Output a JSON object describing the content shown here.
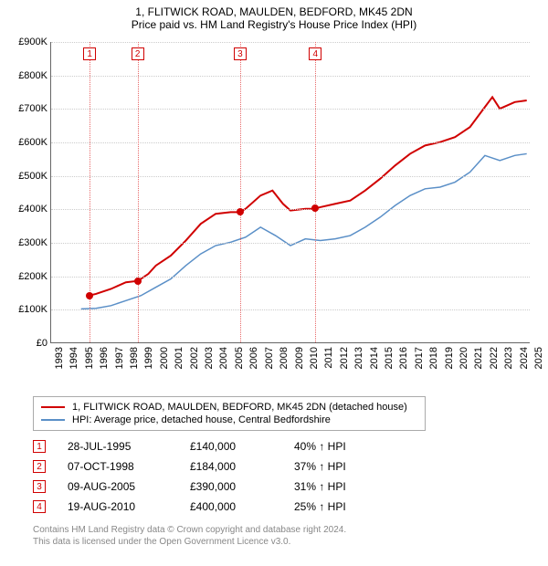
{
  "title_line1": "1, FLITWICK ROAD, MAULDEN, BEDFORD, MK45 2DN",
  "title_line2": "Price paid vs. HM Land Registry's House Price Index (HPI)",
  "chart": {
    "type": "line",
    "background_color": "#ffffff",
    "grid_color": "#cccccc",
    "axis_color": "#666666",
    "ylim": [
      0,
      900000
    ],
    "ytick_step": 100000,
    "ytick_labels": [
      "£0",
      "£100K",
      "£200K",
      "£300K",
      "£400K",
      "£500K",
      "£600K",
      "£700K",
      "£800K",
      "£900K"
    ],
    "xlim": [
      1993,
      2025
    ],
    "xtick_step": 1,
    "xtick_labels": [
      "1993",
      "1994",
      "1995",
      "1996",
      "1997",
      "1998",
      "1999",
      "2000",
      "2001",
      "2002",
      "2003",
      "2004",
      "2005",
      "2006",
      "2007",
      "2008",
      "2009",
      "2010",
      "2011",
      "2012",
      "2013",
      "2014",
      "2015",
      "2016",
      "2017",
      "2018",
      "2019",
      "2020",
      "2021",
      "2022",
      "2023",
      "2024",
      "2025"
    ],
    "label_fontsize": 11,
    "title_fontsize": 12,
    "series": {
      "price": {
        "label": "1, FLITWICK ROAD, MAULDEN, BEDFORD, MK45 2DN (detached house)",
        "color": "#d00000",
        "line_width": 2,
        "points": [
          [
            1995.5,
            140000
          ],
          [
            1996,
            145000
          ],
          [
            1997,
            160000
          ],
          [
            1998,
            180000
          ],
          [
            1998.8,
            184000
          ],
          [
            1999.5,
            205000
          ],
          [
            2000,
            230000
          ],
          [
            2001,
            260000
          ],
          [
            2002,
            305000
          ],
          [
            2003,
            355000
          ],
          [
            2004,
            385000
          ],
          [
            2005,
            390000
          ],
          [
            2005.6,
            390000
          ],
          [
            2006,
            400000
          ],
          [
            2007,
            440000
          ],
          [
            2007.8,
            455000
          ],
          [
            2008.5,
            415000
          ],
          [
            2009,
            395000
          ],
          [
            2010,
            400000
          ],
          [
            2010.6,
            400000
          ],
          [
            2011,
            405000
          ],
          [
            2012,
            415000
          ],
          [
            2013,
            425000
          ],
          [
            2014,
            455000
          ],
          [
            2015,
            490000
          ],
          [
            2016,
            530000
          ],
          [
            2017,
            565000
          ],
          [
            2018,
            590000
          ],
          [
            2019,
            600000
          ],
          [
            2020,
            615000
          ],
          [
            2021,
            645000
          ],
          [
            2022,
            705000
          ],
          [
            2022.5,
            735000
          ],
          [
            2023,
            700000
          ],
          [
            2024,
            720000
          ],
          [
            2024.8,
            725000
          ]
        ]
      },
      "hpi": {
        "label": "HPI: Average price, detached house, Central Bedfordshire",
        "color": "#5a8fc7",
        "line_width": 1.5,
        "points": [
          [
            1995,
            100000
          ],
          [
            1996,
            102000
          ],
          [
            1997,
            110000
          ],
          [
            1998,
            125000
          ],
          [
            1999,
            140000
          ],
          [
            2000,
            165000
          ],
          [
            2001,
            190000
          ],
          [
            2002,
            230000
          ],
          [
            2003,
            265000
          ],
          [
            2004,
            290000
          ],
          [
            2005,
            300000
          ],
          [
            2006,
            315000
          ],
          [
            2007,
            345000
          ],
          [
            2008,
            320000
          ],
          [
            2009,
            290000
          ],
          [
            2010,
            310000
          ],
          [
            2011,
            305000
          ],
          [
            2012,
            310000
          ],
          [
            2013,
            320000
          ],
          [
            2014,
            345000
          ],
          [
            2015,
            375000
          ],
          [
            2016,
            410000
          ],
          [
            2017,
            440000
          ],
          [
            2018,
            460000
          ],
          [
            2019,
            465000
          ],
          [
            2020,
            480000
          ],
          [
            2021,
            510000
          ],
          [
            2022,
            560000
          ],
          [
            2023,
            545000
          ],
          [
            2024,
            560000
          ],
          [
            2024.8,
            565000
          ]
        ]
      }
    },
    "sale_markers": [
      {
        "n": "1",
        "x": 1995.57,
        "date": "28-JUL-1995",
        "price": "£140,000",
        "hpi": "40% ↑ HPI",
        "pt": [
          1995.57,
          140000
        ]
      },
      {
        "n": "2",
        "x": 1998.77,
        "date": "07-OCT-1998",
        "price": "£184,000",
        "hpi": "37% ↑ HPI",
        "pt": [
          1998.77,
          184000
        ]
      },
      {
        "n": "3",
        "x": 2005.61,
        "date": "09-AUG-2005",
        "price": "£390,000",
        "hpi": "31% ↑ HPI",
        "pt": [
          2005.61,
          390000
        ]
      },
      {
        "n": "4",
        "x": 2010.63,
        "date": "19-AUG-2010",
        "price": "£400,000",
        "hpi": "25% ↑ HPI",
        "pt": [
          2010.63,
          400000
        ]
      }
    ],
    "marker_line_color": "#e86a6a",
    "marker_box_color": "#d00000",
    "point_color": "#d00000"
  },
  "legend": {
    "items": [
      {
        "color": "#d00000",
        "label_key": "chart.series.price.label"
      },
      {
        "color": "#5a8fc7",
        "label_key": "chart.series.hpi.label"
      }
    ]
  },
  "footer_line1": "Contains HM Land Registry data © Crown copyright and database right 2024.",
  "footer_line2": "This data is licensed under the Open Government Licence v3.0."
}
